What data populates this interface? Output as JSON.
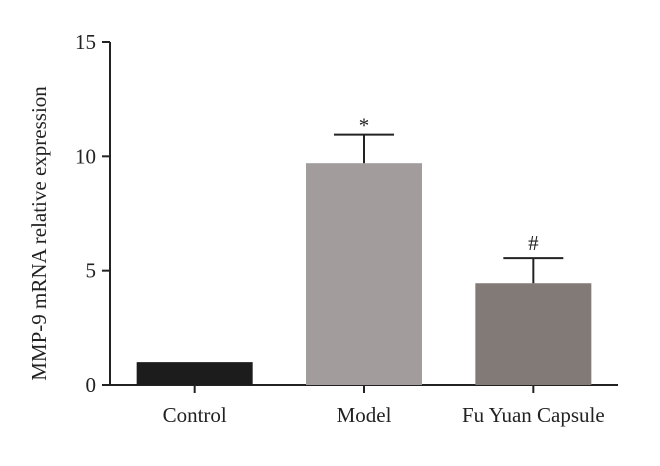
{
  "chart_data": {
    "type": "bar",
    "categories": [
      "Control",
      "Model",
      "Fu Yuan Capsule"
    ],
    "values": [
      1.0,
      9.7,
      4.45
    ],
    "errors": [
      0,
      1.25,
      1.1
    ],
    "annotations": [
      "",
      "*",
      "#"
    ],
    "bar_colors": [
      "#1c1c1c",
      "#a39c9c",
      "#827a77"
    ],
    "title": "",
    "xlabel": "",
    "ylabel": "MMP-9 mRNA relative expression",
    "ylim": [
      0,
      15
    ],
    "yticks": [
      0,
      5,
      10,
      15
    ],
    "grid": false,
    "legend": "none"
  }
}
